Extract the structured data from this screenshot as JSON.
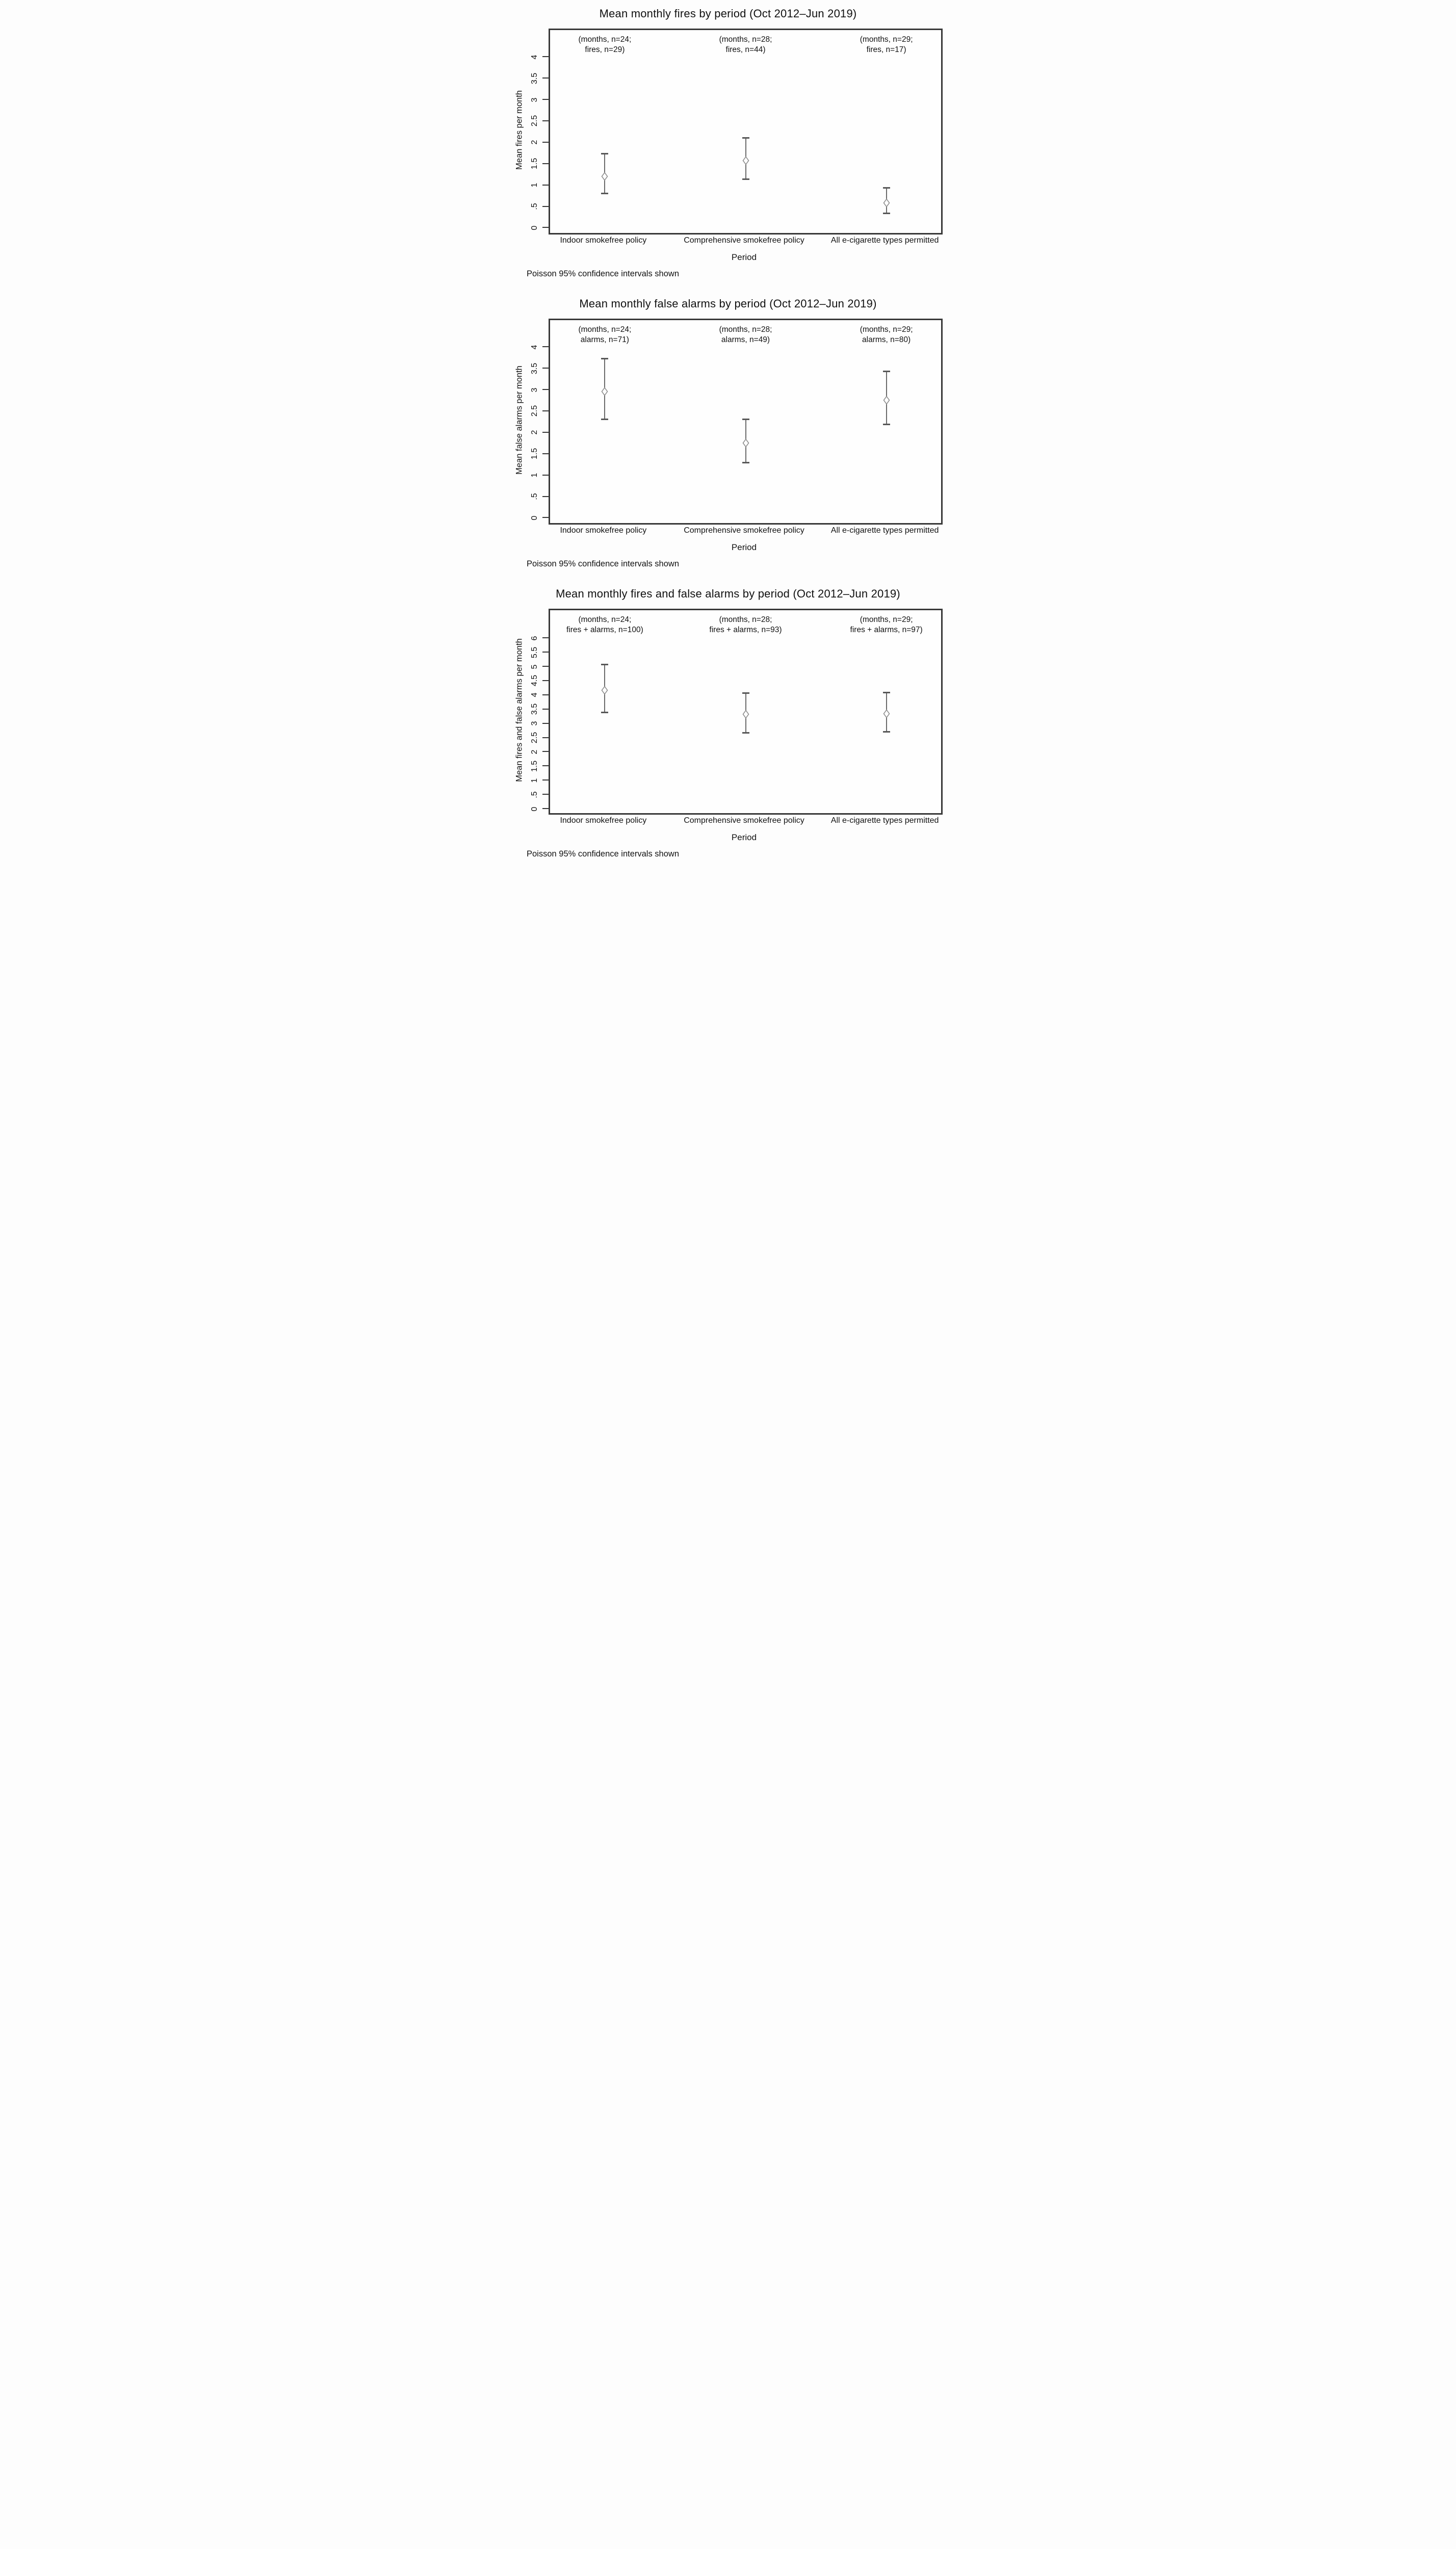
{
  "figure": {
    "description": "Stack of three Stata-style point-estimate plots with Poisson 95% confidence interval error bars",
    "marker": "hollow-diamond",
    "colors": {
      "background": "#fdfdfd",
      "frame": "#383838",
      "error_bar_line": "#6a6a6a",
      "error_bar_cap": "#585858",
      "marker_stroke": "#8f8f8f",
      "marker_fill": "#ffffff",
      "text": "#111111"
    }
  },
  "chart_data": [
    {
      "type": "scatter",
      "title": "Mean monthly fires by period (Oct 2012–Jun 2019)",
      "ylabel": "Mean fires per month",
      "xlabel": "Period",
      "note": "Poisson 95% confidence intervals shown",
      "grid": false,
      "legend": "none",
      "categories": [
        "Indoor smokefree policy",
        "Comprehensive smokefree policy",
        "All e-cigarette types permitted"
      ],
      "annotations": [
        [
          "(months, n=24;",
          "fires, n=29)"
        ],
        [
          "(months, n=28;",
          "fires, n=44)"
        ],
        [
          "(months, n=29;",
          "fires, n=17)"
        ]
      ],
      "months_n": [
        24,
        28,
        29
      ],
      "events_label": "fires",
      "events_n": [
        29,
        44,
        17
      ],
      "means": [
        1.21,
        1.57,
        0.59
      ],
      "ci_low": [
        0.81,
        1.14,
        0.34
      ],
      "ci_high": [
        1.74,
        2.11,
        0.94
      ],
      "interval_type": "Poisson 95% CI",
      "ytick_labels": [
        "0",
        ".5",
        "1",
        "1.5",
        "2",
        "2.5",
        "3",
        "3.5",
        "4"
      ],
      "ytick_values": [
        0,
        0.5,
        1,
        1.5,
        2,
        2.5,
        3,
        3.5,
        4
      ],
      "ylim": [
        -0.12,
        4.63
      ]
    },
    {
      "type": "scatter",
      "title": "Mean monthly false alarms by period (Oct 2012–Jun 2019)",
      "ylabel": "Mean false alarms per month",
      "xlabel": "Period",
      "note": "Poisson 95% confidence intervals shown",
      "grid": false,
      "legend": "none",
      "categories": [
        "Indoor smokefree policy",
        "Comprehensive smokefree policy",
        "All e-cigarette types permitted"
      ],
      "annotations": [
        [
          "(months, n=24;",
          "alarms, n=71)"
        ],
        [
          "(months, n=28;",
          "alarms, n=49)"
        ],
        [
          "(months, n=29;",
          "alarms, n=80)"
        ]
      ],
      "months_n": [
        24,
        28,
        29
      ],
      "events_label": "alarms",
      "events_n": [
        71,
        49,
        80
      ],
      "means": [
        2.96,
        1.75,
        2.76
      ],
      "ci_low": [
        2.31,
        1.29,
        2.19
      ],
      "ci_high": [
        3.73,
        2.31,
        3.43
      ],
      "interval_type": "Poisson 95% CI",
      "ytick_labels": [
        "0",
        ".5",
        "1",
        "1.5",
        "2",
        "2.5",
        "3",
        "3.5",
        "4"
      ],
      "ytick_values": [
        0,
        0.5,
        1,
        1.5,
        2,
        2.5,
        3,
        3.5,
        4
      ],
      "ylim": [
        -0.12,
        4.63
      ]
    },
    {
      "type": "scatter",
      "title": "Mean monthly fires and false alarms by period (Oct 2012–Jun 2019)",
      "ylabel": "Mean fires and false alarms per month",
      "xlabel": "Period",
      "note": "Poisson 95% confidence intervals shown",
      "grid": false,
      "legend": "none",
      "categories": [
        "Indoor smokefree policy",
        "Comprehensive smokefree policy",
        "All e-cigarette types permitted"
      ],
      "annotations": [
        [
          "(months, n=24;",
          "fires + alarms, n=100)"
        ],
        [
          "(months, n=28;",
          "fires + alarms, n=93)"
        ],
        [
          "(months, n=29;",
          "fires + alarms, n=97)"
        ]
      ],
      "months_n": [
        24,
        28,
        29
      ],
      "events_label": "fires + alarms",
      "events_n": [
        100,
        93,
        97
      ],
      "means": [
        4.17,
        3.32,
        3.34
      ],
      "ci_low": [
        3.39,
        2.68,
        2.71
      ],
      "ci_high": [
        5.07,
        4.07,
        4.08
      ],
      "interval_type": "Poisson 95% CI",
      "ytick_labels": [
        "0",
        ".5",
        "1",
        "1.5",
        "2",
        "2.5",
        "3",
        "3.5",
        "4",
        "4.5",
        "5",
        "5.5",
        "6"
      ],
      "ytick_values": [
        0,
        0.5,
        1,
        1.5,
        2,
        2.5,
        3,
        3.5,
        4,
        4.5,
        5,
        5.5,
        6
      ],
      "ylim": [
        -0.15,
        6.98
      ]
    }
  ]
}
